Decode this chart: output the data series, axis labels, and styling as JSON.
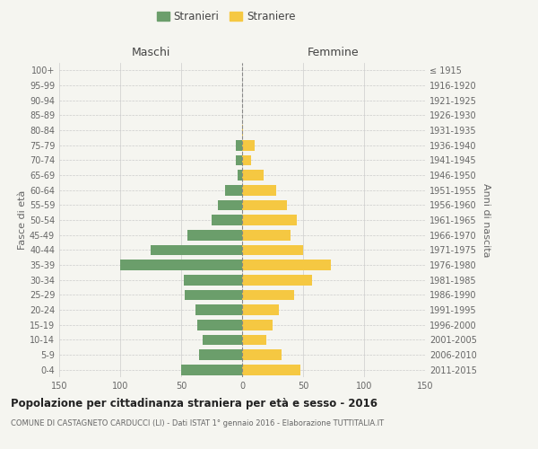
{
  "age_groups": [
    "0-4",
    "5-9",
    "10-14",
    "15-19",
    "20-24",
    "25-29",
    "30-34",
    "35-39",
    "40-44",
    "45-49",
    "50-54",
    "55-59",
    "60-64",
    "65-69",
    "70-74",
    "75-79",
    "80-84",
    "85-89",
    "90-94",
    "95-99",
    "100+"
  ],
  "birth_years": [
    "2011-2015",
    "2006-2010",
    "2001-2005",
    "1996-2000",
    "1991-1995",
    "1986-1990",
    "1981-1985",
    "1976-1980",
    "1971-1975",
    "1966-1970",
    "1961-1965",
    "1956-1960",
    "1951-1955",
    "1946-1950",
    "1941-1945",
    "1936-1940",
    "1931-1935",
    "1926-1930",
    "1921-1925",
    "1916-1920",
    "≤ 1915"
  ],
  "maschi": [
    50,
    35,
    32,
    37,
    38,
    47,
    48,
    100,
    75,
    45,
    25,
    20,
    14,
    4,
    5,
    5,
    0,
    0,
    0,
    0,
    0
  ],
  "femmine": [
    48,
    32,
    20,
    25,
    30,
    43,
    57,
    73,
    50,
    40,
    45,
    37,
    28,
    18,
    7,
    10,
    1,
    0,
    0,
    0,
    0
  ],
  "maschi_color": "#6b9e6b",
  "femmine_color": "#f5c842",
  "title": "Popolazione per cittadinanza straniera per età e sesso - 2016",
  "subtitle": "COMUNE DI CASTAGNETO CARDUCCI (LI) - Dati ISTAT 1° gennaio 2016 - Elaborazione TUTTITALIA.IT",
  "xlabel_left": "Maschi",
  "xlabel_right": "Femmine",
  "ylabel_left": "Fasce di età",
  "ylabel_right": "Anni di nascita",
  "legend_stranieri": "Stranieri",
  "legend_straniere": "Straniere",
  "xlim": 150,
  "background_color": "#f5f5f0",
  "grid_color": "#cccccc"
}
